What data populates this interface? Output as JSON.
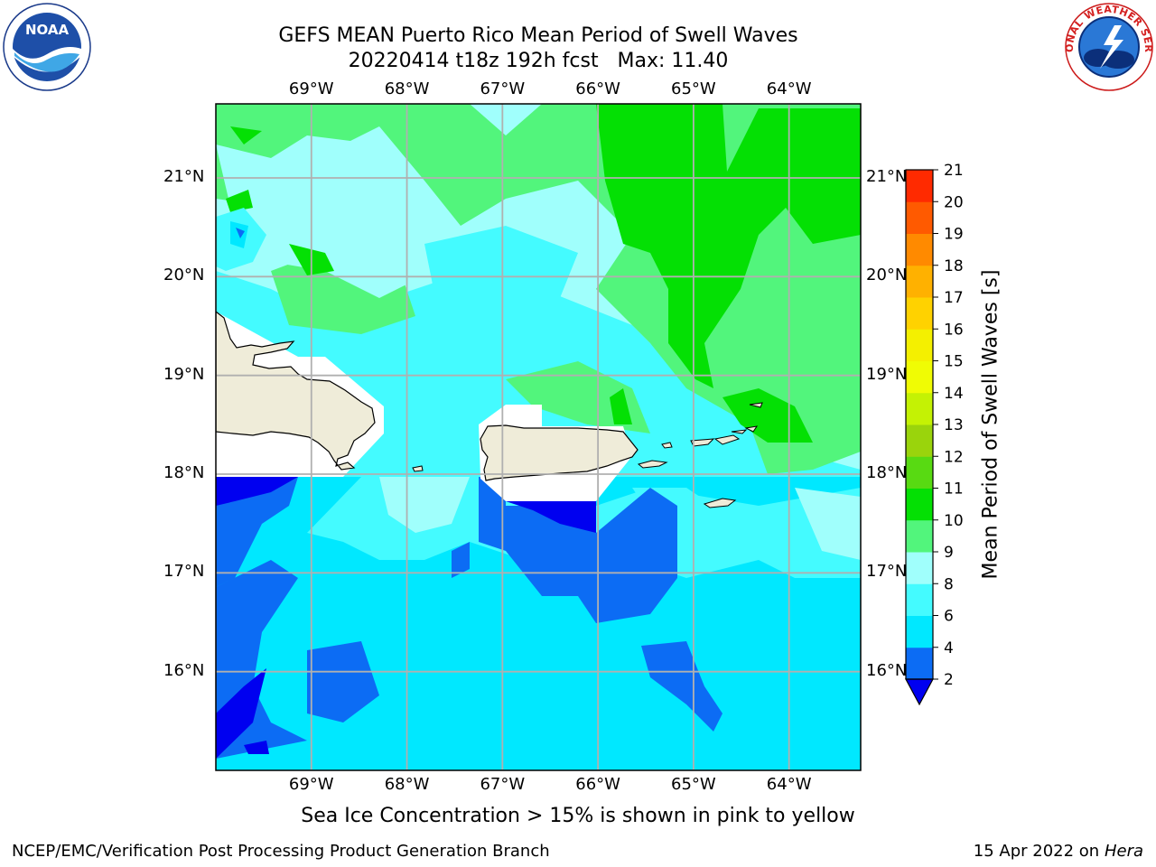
{
  "title": {
    "line1": "GEFS MEAN Puerto Rico Mean Period of Swell Waves",
    "line2": "20220414 t18z 192h fcst   Max: 11.40"
  },
  "map": {
    "lon_range": [
      -70.0,
      -63.25
    ],
    "lat_range": [
      15.0,
      21.75
    ],
    "lon_ticks": [
      {
        "value": -69,
        "label": "69°W"
      },
      {
        "value": -68,
        "label": "68°W"
      },
      {
        "value": -67,
        "label": "67°W"
      },
      {
        "value": -66,
        "label": "66°W"
      },
      {
        "value": -65,
        "label": "65°W"
      },
      {
        "value": -64,
        "label": "64°W"
      }
    ],
    "lat_ticks": [
      {
        "value": 21,
        "label": "21°N"
      },
      {
        "value": 20,
        "label": "20°N"
      },
      {
        "value": 19,
        "label": "19°N"
      },
      {
        "value": 18,
        "label": "18°N"
      },
      {
        "value": 17,
        "label": "17°N"
      },
      {
        "value": 16,
        "label": "16°N"
      }
    ],
    "grid": true,
    "land_color": "#efecd9",
    "masked_color": "#ffffff"
  },
  "colorbar": {
    "label": "Mean Period of Swell Waves [s]",
    "levels": [
      2,
      4,
      6,
      8,
      9,
      10,
      11,
      12,
      13,
      14,
      15,
      16,
      17,
      18,
      19,
      20,
      21
    ],
    "colors": [
      "#0c6cf4",
      "#00e8ff",
      "#44fbff",
      "#a0fffc",
      "#52f57c",
      "#04e004",
      "#58da12",
      "#9ad40c",
      "#c4f204",
      "#f0fc04",
      "#f4f000",
      "#ffd200",
      "#ffb100",
      "#ff8a00",
      "#ff5a00",
      "#ff2a00",
      "#fc0000"
    ],
    "under_color": "#0000f0",
    "extend": "min"
  },
  "caption": "Sea Ice Concentration > 15% is shown in pink to yellow",
  "footer": {
    "left": "NCEP/EMC/Verification Post Processing Product Generation Branch",
    "right_prefix": "15 Apr 2022 on ",
    "right_machine": "Hera"
  },
  "logos": {
    "left": "NOAA",
    "right": "NATIONAL WEATHER SERVICE"
  }
}
